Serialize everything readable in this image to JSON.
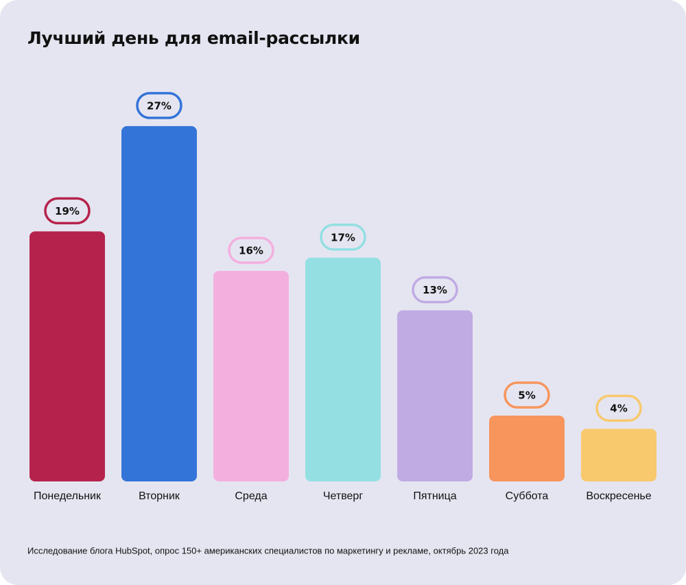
{
  "chart_data": {
    "type": "bar",
    "title": "Лучший день для email-рассылки",
    "categories": [
      "Понедельник",
      "Вторник",
      "Среда",
      "Четверг",
      "Пятница",
      "Суббота",
      "Воскресенье"
    ],
    "values": [
      19,
      27,
      16,
      17,
      13,
      5,
      4
    ],
    "value_labels": [
      "19%",
      "27%",
      "16%",
      "17%",
      "13%",
      "5%",
      "4%"
    ],
    "colors": [
      "#b5234c",
      "#3374d8",
      "#f3b0de",
      "#93dfe2",
      "#c0abe3",
      "#f7955c",
      "#f8c96d"
    ],
    "note": "Исследование блога HubSpot, опрос 150+ американских специалистов по маркетингу и рекламе, октябрь 2023 года"
  }
}
